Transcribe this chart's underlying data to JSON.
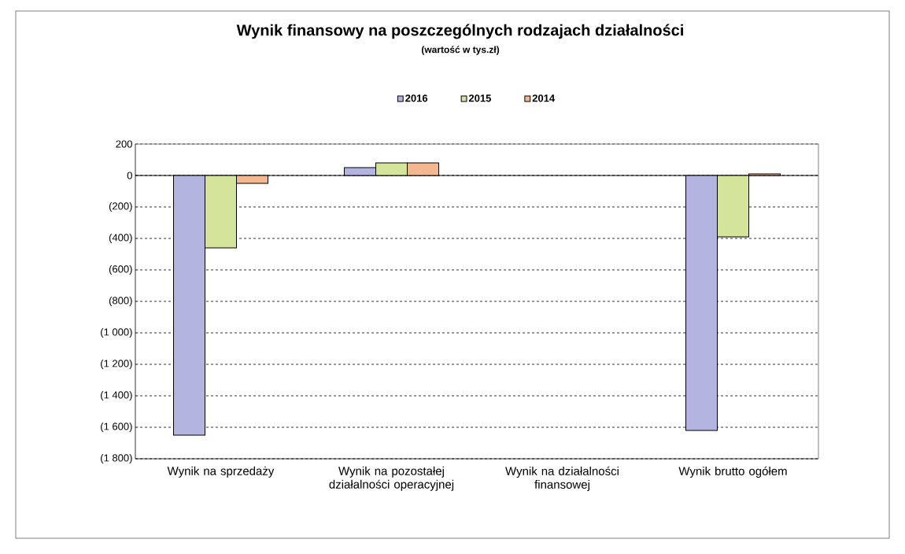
{
  "chart_data": {
    "type": "bar",
    "title": "Wynik finansowy na poszczególnych rodzajach działalności",
    "subtitle": "(wartość w tys.zł)",
    "categories": [
      "Wynik na sprzedaży",
      "Wynik na pozostałej działalności operacyjnej",
      "Wynik na działalności finansowej",
      "Wynik brutto ogółem"
    ],
    "series": [
      {
        "name": "2016",
        "color": "#b4b4e0",
        "values": [
          -1650,
          50,
          null,
          -1620
        ]
      },
      {
        "name": "2015",
        "color": "#d4e49a",
        "values": [
          -460,
          80,
          null,
          -390
        ]
      },
      {
        "name": "2014",
        "color": "#f4b890",
        "values": [
          -50,
          80,
          null,
          10
        ]
      }
    ],
    "ylim": [
      -1800,
      200
    ],
    "yticks": [
      200,
      0,
      {
        "value": -200,
        "label": "(200)"
      },
      {
        "value": -400,
        "label": "(400)"
      },
      {
        "value": -600,
        "label": "(600)"
      },
      {
        "value": -800,
        "label": "(800)"
      },
      {
        "value": -1000,
        "label": "(1 000)"
      },
      {
        "value": -1200,
        "label": "(1 200)"
      },
      {
        "value": -1400,
        "label": "(1 400)"
      },
      {
        "value": -1600,
        "label": "(1 600)"
      },
      {
        "value": -1800,
        "label": "(1 800)"
      }
    ],
    "grid": "y",
    "legend": "top"
  }
}
